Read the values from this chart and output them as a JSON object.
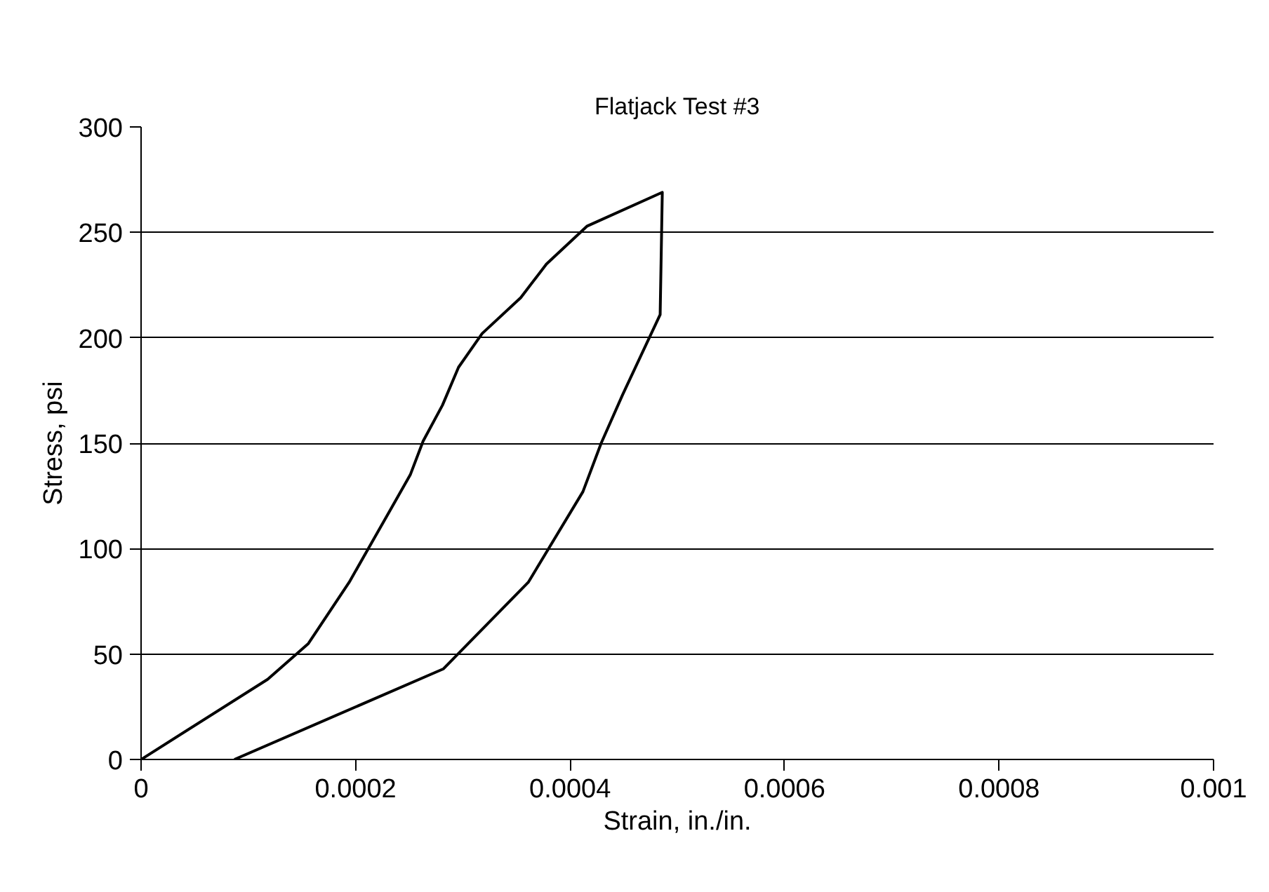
{
  "chart_data": {
    "type": "line",
    "title": "Flatjack Test #3",
    "xlabel": "Strain, in./in.",
    "ylabel": "Stress, psi",
    "x": [
      0,
      0.000118,
      0.000156,
      0.000194,
      0.000232,
      0.000251,
      0.000263,
      0.000281,
      0.000296,
      0.000318,
      0.000354,
      0.000378,
      0.000416,
      0.000486,
      0.000484,
      0.000449,
      0.000429,
      0.000412,
      0.000361,
      0.000282,
      8.7e-05
    ],
    "series": [
      {
        "color": "#000000",
        "values": [
          0,
          38,
          55,
          84,
          118,
          135,
          151,
          168,
          186,
          202,
          219,
          235,
          253,
          269,
          211,
          173,
          150,
          127,
          84,
          43,
          0
        ]
      }
    ],
    "xlim": [
      0,
      0.001
    ],
    "xticks": [
      0,
      0.0002,
      0.0004,
      0.0006,
      0.0008,
      0.001
    ],
    "ylim": [
      0,
      300
    ],
    "yticks": [
      0,
      50,
      100,
      150,
      200,
      250,
      300
    ],
    "grid": "y",
    "marker": "none",
    "line_style": "solid"
  }
}
